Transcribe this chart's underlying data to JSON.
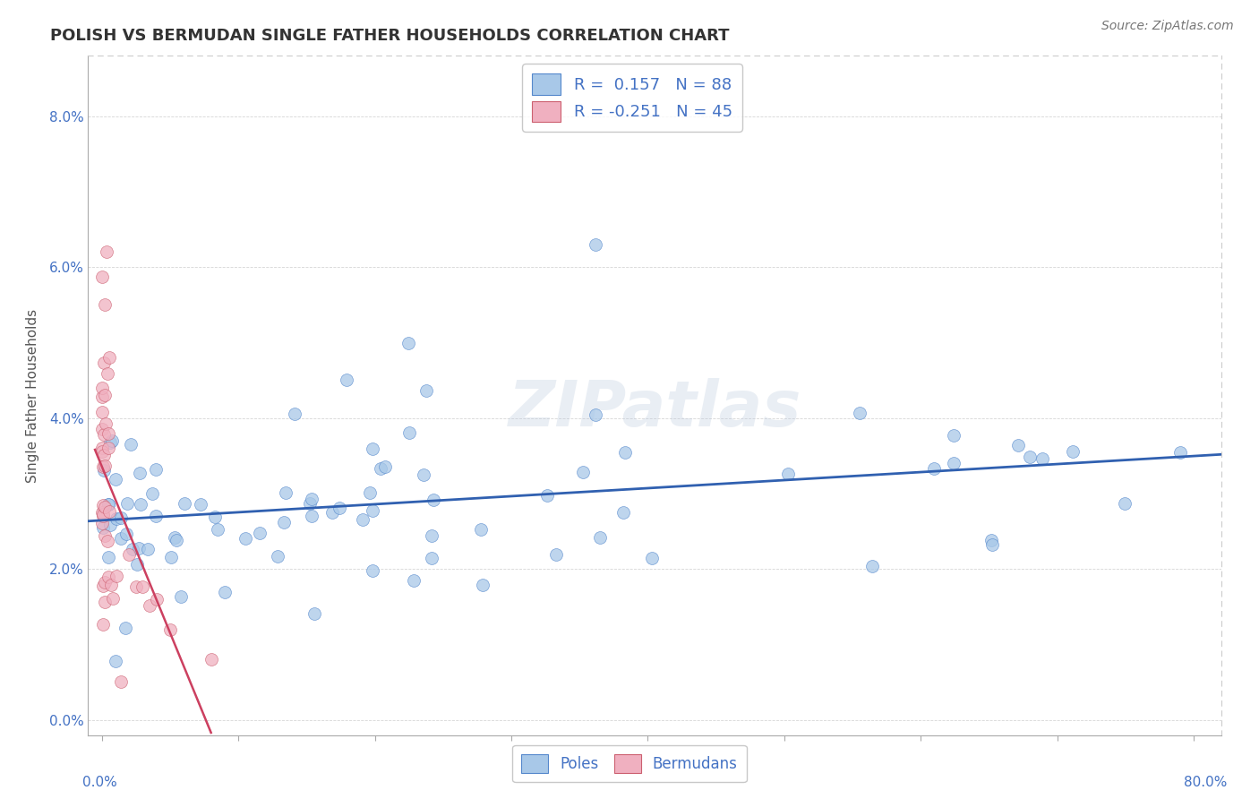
{
  "title": "POLISH VS BERMUDAN SINGLE FATHER HOUSEHOLDS CORRELATION CHART",
  "source": "Source: ZipAtlas.com",
  "ylabel": "Single Father Households",
  "yticks": [
    "0.0%",
    "2.0%",
    "4.0%",
    "6.0%",
    "8.0%"
  ],
  "ytick_vals": [
    0.0,
    0.02,
    0.04,
    0.06,
    0.08
  ],
  "xlim": [
    -0.01,
    0.82
  ],
  "ylim": [
    -0.002,
    0.088
  ],
  "poles_R": 0.157,
  "poles_N": 88,
  "bermudans_R": -0.251,
  "bermudans_N": 45,
  "poles_color": "#a8c8e8",
  "poles_edge_color": "#5588cc",
  "bermudans_color": "#f0b0c0",
  "bermudans_edge_color": "#cc6070",
  "poles_line_color": "#3060b0",
  "bermudans_line_color": "#cc4060",
  "watermark": "ZIPatlas",
  "background_color": "#ffffff",
  "poles_seed": 42,
  "bermudans_seed": 99
}
